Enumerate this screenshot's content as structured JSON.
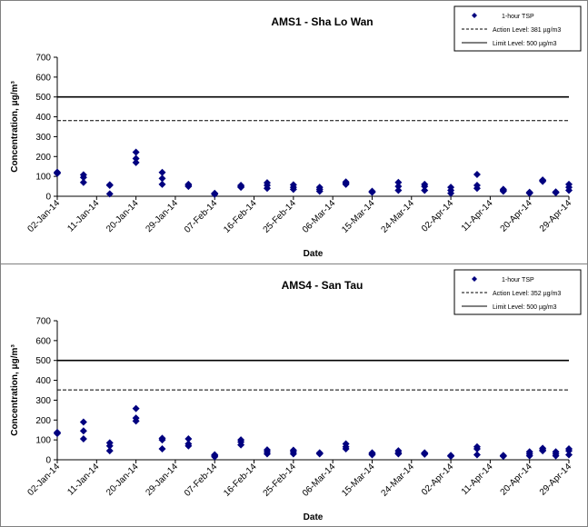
{
  "chart_data": [
    {
      "type": "scatter",
      "title": "AMS1 - Sha Lo Wan",
      "xlabel": "Date",
      "ylabel": "Concentration, μg/m³",
      "ylim": [
        0,
        700
      ],
      "yticks": [
        "0",
        "100",
        "200",
        "300",
        "400",
        "500",
        "600",
        "700"
      ],
      "xticks": [
        "02-Jan-14",
        "11-Jan-14",
        "20-Jan-14",
        "29-Jan-14",
        "07-Feb-14",
        "16-Feb-14",
        "25-Feb-14",
        "06-Mar-14",
        "15-Mar-14",
        "24-Mar-14",
        "02-Apr-14",
        "11-Apr-14",
        "20-Apr-14",
        "29-Apr-14"
      ],
      "xlim": [
        "2014-01-02",
        "2014-04-29"
      ],
      "grid": false,
      "legend_position": "top-right",
      "series": [
        {
          "name": "1-hour TSP",
          "marker": "diamond",
          "color": "#00007f",
          "points": [
            [
              "2014-01-02",
              115
            ],
            [
              "2014-01-02",
              118
            ],
            [
              "2014-01-02",
              121
            ],
            [
              "2014-01-08",
              70
            ],
            [
              "2014-01-08",
              95
            ],
            [
              "2014-01-08",
              108
            ],
            [
              "2014-01-14",
              12
            ],
            [
              "2014-01-14",
              55
            ],
            [
              "2014-01-14",
              58
            ],
            [
              "2014-01-20",
              170
            ],
            [
              "2014-01-20",
              190
            ],
            [
              "2014-01-20",
              222
            ],
            [
              "2014-01-26",
              60
            ],
            [
              "2014-01-26",
              90
            ],
            [
              "2014-01-26",
              120
            ],
            [
              "2014-02-01",
              50
            ],
            [
              "2014-02-01",
              55
            ],
            [
              "2014-02-01",
              60
            ],
            [
              "2014-02-07",
              10
            ],
            [
              "2014-02-07",
              12
            ],
            [
              "2014-02-07",
              15
            ],
            [
              "2014-02-13",
              45
            ],
            [
              "2014-02-13",
              50
            ],
            [
              "2014-02-13",
              55
            ],
            [
              "2014-02-19",
              40
            ],
            [
              "2014-02-19",
              55
            ],
            [
              "2014-02-19",
              68
            ],
            [
              "2014-02-25",
              35
            ],
            [
              "2014-02-25",
              45
            ],
            [
              "2014-02-25",
              58
            ],
            [
              "2014-03-03",
              25
            ],
            [
              "2014-03-03",
              35
            ],
            [
              "2014-03-03",
              45
            ],
            [
              "2014-03-09",
              60
            ],
            [
              "2014-03-09",
              65
            ],
            [
              "2014-03-09",
              72
            ],
            [
              "2014-03-15",
              20
            ],
            [
              "2014-03-15",
              22
            ],
            [
              "2014-03-15",
              25
            ],
            [
              "2014-03-21",
              30
            ],
            [
              "2014-03-21",
              50
            ],
            [
              "2014-03-21",
              70
            ],
            [
              "2014-03-27",
              30
            ],
            [
              "2014-03-27",
              50
            ],
            [
              "2014-03-27",
              60
            ],
            [
              "2014-04-02",
              15
            ],
            [
              "2014-04-02",
              30
            ],
            [
              "2014-04-02",
              45
            ],
            [
              "2014-04-08",
              40
            ],
            [
              "2014-04-08",
              55
            ],
            [
              "2014-04-08",
              110
            ],
            [
              "2014-04-14",
              25
            ],
            [
              "2014-04-14",
              30
            ],
            [
              "2014-04-14",
              35
            ],
            [
              "2014-04-20",
              15
            ],
            [
              "2014-04-20",
              17
            ],
            [
              "2014-04-20",
              20
            ],
            [
              "2014-04-23",
              75
            ],
            [
              "2014-04-23",
              80
            ],
            [
              "2014-04-23",
              82
            ],
            [
              "2014-04-26",
              18
            ],
            [
              "2014-04-26",
              20
            ],
            [
              "2014-04-26",
              22
            ],
            [
              "2014-04-29",
              30
            ],
            [
              "2014-04-29",
              45
            ],
            [
              "2014-04-29",
              60
            ]
          ]
        },
        {
          "name": "Action Level: 381 µg/m3",
          "type": "hline",
          "style": "dashed",
          "value": 381,
          "color": "#000000"
        },
        {
          "name": "Limit Level: 500 µg/m3",
          "type": "hline",
          "style": "solid",
          "value": 500,
          "color": "#000000"
        }
      ]
    },
    {
      "type": "scatter",
      "title": "AMS4 - San Tau",
      "xlabel": "Date",
      "ylabel": "Concentration, μg/m³",
      "ylim": [
        0,
        700
      ],
      "yticks": [
        "0",
        "100",
        "200",
        "300",
        "400",
        "500",
        "600",
        "700"
      ],
      "xticks": [
        "02-Jan-14",
        "11-Jan-14",
        "20-Jan-14",
        "29-Jan-14",
        "07-Feb-14",
        "16-Feb-14",
        "25-Feb-14",
        "06-Mar-14",
        "15-Mar-14",
        "24-Mar-14",
        "02-Apr-14",
        "11-Apr-14",
        "20-Apr-14",
        "29-Apr-14"
      ],
      "xlim": [
        "2014-01-02",
        "2014-04-29"
      ],
      "grid": false,
      "legend_position": "top-right",
      "series": [
        {
          "name": "1-hour TSP",
          "marker": "diamond",
          "color": "#00007f",
          "points": [
            [
              "2014-01-02",
              132
            ],
            [
              "2014-01-02",
              135
            ],
            [
              "2014-01-02",
              138
            ],
            [
              "2014-01-08",
              105
            ],
            [
              "2014-01-08",
              145
            ],
            [
              "2014-01-08",
              190
            ],
            [
              "2014-01-14",
              45
            ],
            [
              "2014-01-14",
              70
            ],
            [
              "2014-01-14",
              85
            ],
            [
              "2014-01-20",
              195
            ],
            [
              "2014-01-20",
              210
            ],
            [
              "2014-01-20",
              258
            ],
            [
              "2014-01-26",
              55
            ],
            [
              "2014-01-26",
              100
            ],
            [
              "2014-01-26",
              108
            ],
            [
              "2014-02-01",
              70
            ],
            [
              "2014-02-01",
              80
            ],
            [
              "2014-02-01",
              105
            ],
            [
              "2014-02-07",
              15
            ],
            [
              "2014-02-07",
              20
            ],
            [
              "2014-02-07",
              25
            ],
            [
              "2014-02-13",
              75
            ],
            [
              "2014-02-13",
              90
            ],
            [
              "2014-02-13",
              100
            ],
            [
              "2014-02-19",
              30
            ],
            [
              "2014-02-19",
              40
            ],
            [
              "2014-02-19",
              50
            ],
            [
              "2014-02-25",
              30
            ],
            [
              "2014-02-25",
              40
            ],
            [
              "2014-02-25",
              48
            ],
            [
              "2014-03-03",
              30
            ],
            [
              "2014-03-03",
              32
            ],
            [
              "2014-03-03",
              35
            ],
            [
              "2014-03-09",
              55
            ],
            [
              "2014-03-09",
              65
            ],
            [
              "2014-03-09",
              80
            ],
            [
              "2014-03-15",
              25
            ],
            [
              "2014-03-15",
              30
            ],
            [
              "2014-03-15",
              35
            ],
            [
              "2014-03-21",
              30
            ],
            [
              "2014-03-21",
              35
            ],
            [
              "2014-03-21",
              45
            ],
            [
              "2014-03-27",
              28
            ],
            [
              "2014-03-27",
              32
            ],
            [
              "2014-03-27",
              35
            ],
            [
              "2014-04-02",
              18
            ],
            [
              "2014-04-02",
              20
            ],
            [
              "2014-04-02",
              22
            ],
            [
              "2014-04-08",
              25
            ],
            [
              "2014-04-08",
              55
            ],
            [
              "2014-04-08",
              65
            ],
            [
              "2014-04-14",
              18
            ],
            [
              "2014-04-14",
              20
            ],
            [
              "2014-04-14",
              22
            ],
            [
              "2014-04-20",
              20
            ],
            [
              "2014-04-20",
              30
            ],
            [
              "2014-04-20",
              40
            ],
            [
              "2014-04-23",
              45
            ],
            [
              "2014-04-23",
              50
            ],
            [
              "2014-04-23",
              58
            ],
            [
              "2014-04-26",
              20
            ],
            [
              "2014-04-26",
              30
            ],
            [
              "2014-04-26",
              40
            ],
            [
              "2014-04-29",
              25
            ],
            [
              "2014-04-29",
              45
            ],
            [
              "2014-04-29",
              55
            ]
          ]
        },
        {
          "name": "Action Level: 352 µg/m3",
          "type": "hline",
          "style": "dashed",
          "value": 352,
          "color": "#000000"
        },
        {
          "name": "Limit Level: 500 µg/m3",
          "type": "hline",
          "style": "solid",
          "value": 500,
          "color": "#000000"
        }
      ]
    }
  ]
}
